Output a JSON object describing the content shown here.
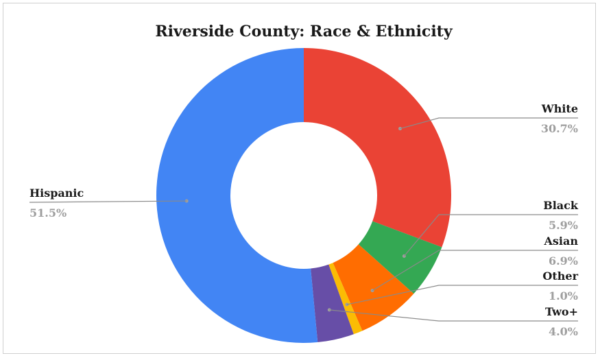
{
  "chart_data": {
    "type": "pie",
    "donut": true,
    "title": "Riverside County: Race & Ethnicity",
    "slices": [
      {
        "name": "White",
        "value": 30.7,
        "label": "30.7%",
        "color": "#ea4335"
      },
      {
        "name": "Black",
        "value": 5.9,
        "label": "5.9%",
        "color": "#34a853"
      },
      {
        "name": "Asian",
        "value": 6.9,
        "label": "6.9%",
        "color": "#ff6d01"
      },
      {
        "name": "Other",
        "value": 1.0,
        "label": "1.0%",
        "color": "#fbbc04"
      },
      {
        "name": "Two+",
        "value": 4.0,
        "label": "4.0%",
        "color": "#674ea7"
      },
      {
        "name": "Hispanic",
        "value": 51.5,
        "label": "51.5%",
        "color": "#4285f4"
      }
    ],
    "legend": "none",
    "data_labels": "outside with leader lines"
  }
}
